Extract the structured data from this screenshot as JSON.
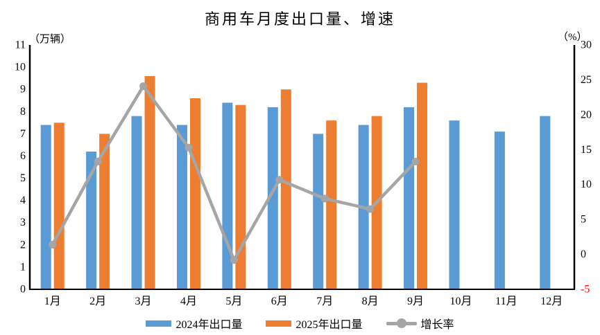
{
  "title": "商用车月度出口量、增速",
  "left_axis": {
    "unit": "（万辆）",
    "min": 0,
    "max": 11,
    "step": 1,
    "color": "#000000"
  },
  "right_axis": {
    "unit": "（%）",
    "min": -5,
    "max": 30,
    "step": 5,
    "color": "#000000",
    "negative_tick_color": "#ff0000"
  },
  "chart_data": {
    "type": "bar+line combo",
    "title": "商用车月度出口量、增速",
    "categories": [
      "1月",
      "2月",
      "3月",
      "4月",
      "5月",
      "6月",
      "7月",
      "8月",
      "9月",
      "10月",
      "11月",
      "12月"
    ],
    "grid": false,
    "legend_position": "bottom",
    "left_ylim": [
      0,
      11
    ],
    "right_ylim": [
      -5,
      30
    ],
    "series": [
      {
        "name": "2024年出口量",
        "type": "bar",
        "axis": "left",
        "color": "#5B9BD5",
        "values": [
          7.4,
          6.2,
          7.8,
          7.4,
          8.4,
          8.2,
          7.0,
          7.4,
          8.2,
          7.6,
          7.1,
          7.8
        ]
      },
      {
        "name": "2025年出口量",
        "type": "bar",
        "axis": "left",
        "color": "#ED7D31",
        "values": [
          7.5,
          7.0,
          9.6,
          8.6,
          8.3,
          9.0,
          7.6,
          7.8,
          9.3,
          null,
          null,
          null
        ]
      },
      {
        "name": "增长率",
        "type": "line",
        "axis": "right",
        "color": "#A5A5A5",
        "values": [
          1.4,
          13.3,
          24.1,
          15.3,
          -0.8,
          10.7,
          8.0,
          6.5,
          13.3,
          null,
          null,
          null
        ]
      }
    ]
  },
  "legend": {
    "items": [
      {
        "label": "2024年出口量",
        "marker": "bar",
        "color": "#5B9BD5"
      },
      {
        "label": "2025年出口量",
        "marker": "bar",
        "color": "#ED7D31"
      },
      {
        "label": "增长率",
        "marker": "line-dot",
        "color": "#A5A5A5"
      }
    ]
  }
}
